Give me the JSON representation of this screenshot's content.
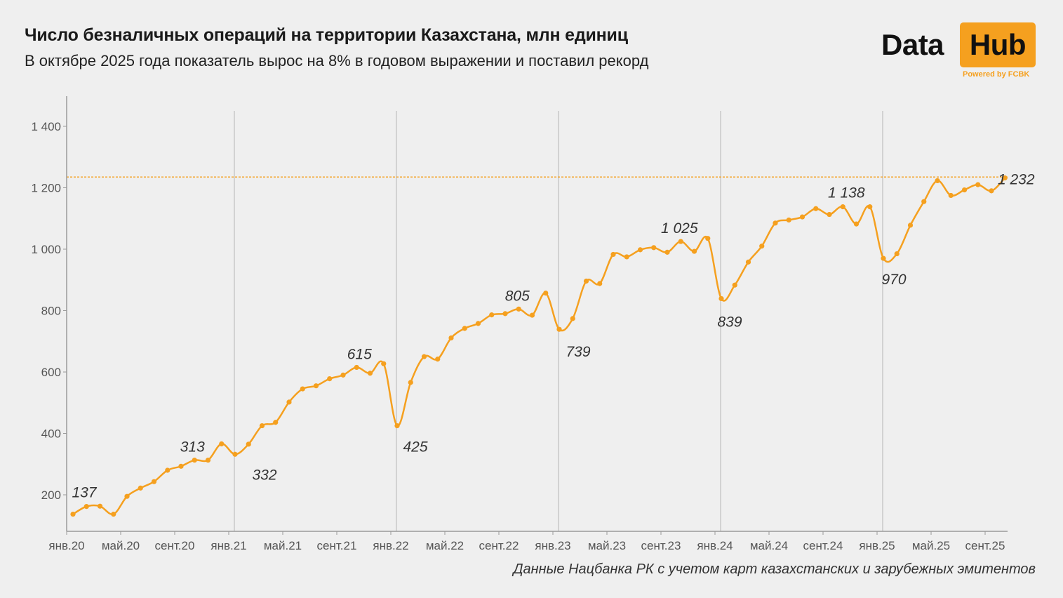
{
  "header": {
    "title": "Число безналичных операций на территории Казахстана, млн единиц",
    "subtitle": "В октябре 2025 года показатель вырос на 8% в годовом выражении и поставил рекорд"
  },
  "logo": {
    "data_text": "Data",
    "hub_text": "Hub",
    "powered_text": "Powered by FCBK",
    "accent": "#f5a01f"
  },
  "source": "Данные Нацбанка РК с учетом карт казахстанских и зарубежных эмитентов",
  "colors": {
    "line": "#f5a01f",
    "axis": "#999999",
    "background": "#efefef"
  },
  "chart_data": {
    "type": "line",
    "x_start": "янв.20",
    "ylim": [
      100,
      1420
    ],
    "y_ticks": [
      200,
      400,
      600,
      800,
      1000,
      1200,
      1400
    ],
    "y_tick_labels": [
      "200",
      "400",
      "600",
      "800",
      "1 000",
      "1 200",
      "1 400"
    ],
    "x_tick_labels": [
      "янв.20",
      "май.20",
      "сент.20",
      "янв.21",
      "май.21",
      "сент.21",
      "янв.22",
      "май.22",
      "сент.22",
      "янв.23",
      "май.23",
      "сент.23",
      "янв.24",
      "май.24",
      "сент.24",
      "янв.25",
      "май.25",
      "сент.25"
    ],
    "x_tick_indices": [
      0,
      4,
      8,
      12,
      16,
      20,
      24,
      28,
      32,
      36,
      40,
      44,
      48,
      52,
      56,
      60,
      64,
      68
    ],
    "year_lines_at": [
      12,
      24,
      36,
      48,
      60
    ],
    "record_line": 1235,
    "series": [
      {
        "values": [
          137,
          162,
          163,
          137,
          195,
          222,
          243,
          280,
          293,
          313,
          313,
          366,
          332,
          365,
          425,
          436,
          502,
          545,
          555,
          578,
          590,
          615,
          596,
          627,
          425,
          566,
          650,
          642,
          711,
          742,
          758,
          786,
          790,
          805,
          785,
          857,
          739,
          774,
          896,
          888,
          983,
          975,
          998,
          1005,
          990,
          1025,
          993,
          1035,
          839,
          883,
          958,
          1010,
          1085,
          1095,
          1105,
          1132,
          1113,
          1138,
          1082,
          1138,
          970,
          985,
          1078,
          1155,
          1223,
          1175,
          1193,
          1210,
          1190,
          1232
        ]
      }
    ],
    "annotations": [
      {
        "index": 0,
        "label": "137"
      },
      {
        "index": 9,
        "label": "313"
      },
      {
        "index": 12,
        "label": "332"
      },
      {
        "index": 21,
        "label": "615"
      },
      {
        "index": 24,
        "label": "425"
      },
      {
        "index": 33,
        "label": "805"
      },
      {
        "index": 36,
        "label": "739"
      },
      {
        "index": 45,
        "label": "1 025"
      },
      {
        "index": 48,
        "label": "839"
      },
      {
        "index": 57,
        "label": "1 138"
      },
      {
        "index": 60,
        "label": "970"
      },
      {
        "index": 69,
        "label": "1 232"
      }
    ]
  }
}
